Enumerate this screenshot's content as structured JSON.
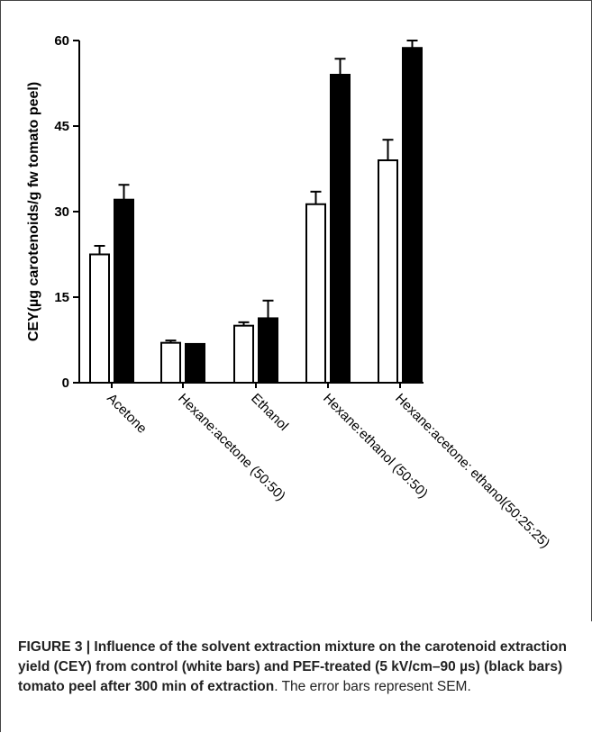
{
  "chart_data": {
    "type": "bar",
    "categories": [
      "Acetone",
      "Hexane:acetone (50:50)",
      "Ethanol",
      "Hexane:ethanol (50:50)",
      "Hexane:acetone: ethanol(50:25:25)"
    ],
    "series": [
      {
        "fill": "#ffffff",
        "values": [
          22.5,
          7,
          10,
          31.3,
          39
        ],
        "errors": [
          1.5,
          0.4,
          0.6,
          2.2,
          3.6
        ]
      },
      {
        "fill": "#000000",
        "values": [
          32.1,
          6.8,
          11.3,
          54,
          58.7
        ],
        "errors": [
          2.6,
          0,
          3.1,
          2.8,
          1.3
        ]
      }
    ],
    "ylabel": "CEY(µg carotenoids/g fw tomato peel)",
    "ylim": [
      0,
      60
    ],
    "yticks": [
      0,
      15,
      30,
      45,
      60
    ]
  },
  "caption": {
    "bold": "FIGURE 3 | Influence of the solvent extraction mixture on the carotenoid extraction yield (CEY) from control (white bars) and PEF-treated (5 kV/cm–90 µs) (black bars) tomato peel after 300 min of extraction",
    "rest": ". The error bars represent SEM."
  }
}
